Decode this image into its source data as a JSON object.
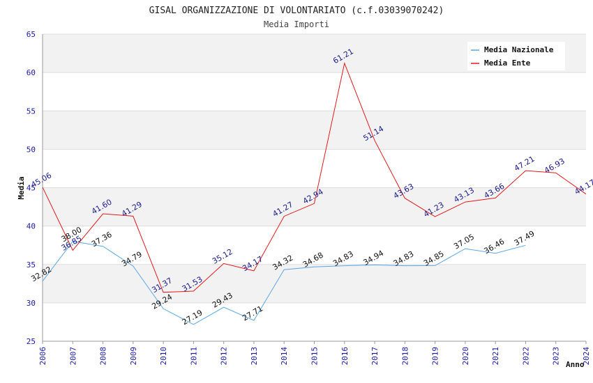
{
  "chart_data": {
    "type": "line",
    "title": "GISAL ORGANIZZAZIONE DI VOLONTARIATO (c.f.03039070242)",
    "subtitle": "Media Importi",
    "xlabel": "Anno",
    "ylabel": "Media",
    "ylim": [
      25,
      65
    ],
    "yticks": [
      "25",
      "30",
      "35",
      "40",
      "45",
      "50",
      "55",
      "60",
      "65"
    ],
    "categories": [
      "2006",
      "2007",
      "2008",
      "2009",
      "2010",
      "2011",
      "2012",
      "2013",
      "2014",
      "2015",
      "2016",
      "2017",
      "2018",
      "2019",
      "2020",
      "2021",
      "2022",
      "2023",
      "2024"
    ],
    "legend_position": "top-right",
    "series": [
      {
        "name": "Media Nazionale",
        "color": "#5aa6e6",
        "values": [
          32.82,
          38.0,
          37.36,
          34.79,
          29.24,
          27.19,
          29.43,
          27.71,
          34.32,
          34.68,
          34.83,
          34.94,
          34.83,
          34.85,
          37.05,
          36.46,
          37.49,
          null,
          null
        ],
        "labels": [
          "32.82",
          "38.00",
          "37.36",
          "34.79",
          "29.24",
          "27.19",
          "29.43",
          "27.71",
          "34.32",
          "34.68",
          "34.83",
          "34.94",
          "34.83",
          "34.85",
          "37.05",
          "36.46",
          "37.49",
          null,
          null
        ]
      },
      {
        "name": "Media Ente",
        "color": "#e41a1c",
        "values": [
          45.06,
          36.85,
          41.6,
          41.29,
          31.37,
          31.53,
          35.12,
          34.17,
          41.27,
          42.94,
          61.21,
          51.14,
          43.63,
          41.23,
          43.13,
          43.66,
          47.21,
          46.93,
          44.17
        ],
        "labels": [
          "45.06",
          "36.85",
          "41.60",
          "41.29",
          "31.37",
          "31.53",
          "35.12",
          "34.17",
          "41.27",
          "42.94",
          "61.21",
          "51.14",
          "43.63",
          "41.23",
          "43.13",
          "43.66",
          "47.21",
          "46.93",
          "44.17"
        ]
      }
    ]
  }
}
